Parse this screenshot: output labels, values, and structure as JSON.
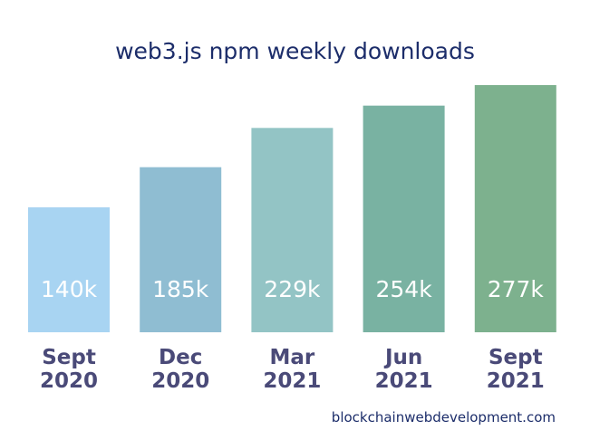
{
  "chart_data": {
    "type": "bar",
    "title": "web3.js npm weekly downloads",
    "categories": [
      [
        "Sept",
        "2020"
      ],
      [
        "Dec",
        "2020"
      ],
      [
        "Mar",
        "2021"
      ],
      [
        "Jun",
        "2021"
      ],
      [
        "Sept",
        "2021"
      ]
    ],
    "values": [
      140,
      185,
      229,
      254,
      277
    ],
    "value_labels": [
      "140k",
      "185k",
      "229k",
      "254k",
      "277k"
    ],
    "unit": "k",
    "ylim": [
      0,
      290
    ],
    "bar_colors": [
      "#a8d4f2",
      "#8fbdd2",
      "#93c4c5",
      "#79b2a2",
      "#7db18e"
    ],
    "value_label_color": "#ffffff",
    "category_label_color": "#4a4a78",
    "grid": false,
    "legend": "none"
  },
  "footer": {
    "source": "blockchainwebdevelopment.com"
  }
}
